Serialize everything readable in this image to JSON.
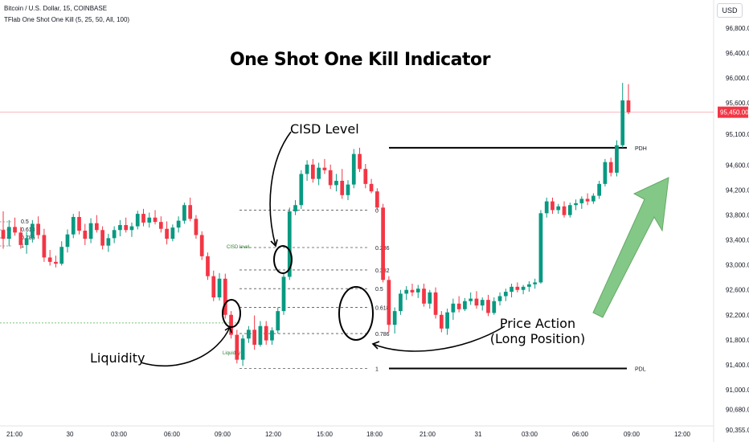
{
  "header": {
    "symbol_line": "Bitcoin / U.S. Dollar, 15, COINBASE",
    "indicator_line": "TFlab One Shot One Kill (5, 25, 50, All, 100)",
    "currency": "USD"
  },
  "annotations": {
    "title": "One Shot One Kill Indicator",
    "cisd_level": "CISD Level",
    "liquidity": "Liquidity",
    "price_action_1": "Price Action",
    "price_action_2": "(Long Position)",
    "cisd_small": "CISD level",
    "liquidity_small": "Liquidity",
    "pdh": "PDH",
    "pdl": "PDL"
  },
  "colors": {
    "bull": "#089981",
    "bear": "#f23645",
    "arrow": "#6fbf73",
    "current_price_bg": "#f23645"
  },
  "chart_data": {
    "type": "candlestick",
    "y_axis": {
      "range": [
        90355,
        97400
      ],
      "tick_labels": [
        "96,800.00",
        "96,400.00",
        "96,000.00",
        "95,600.00",
        "95,100.00",
        "94,600.00",
        "94,200.00",
        "93,800.00",
        "93,400.00",
        "93,000.00",
        "92,600.00",
        "92,200.00",
        "91,800.00",
        "91,400.00",
        "91,000.00",
        "90,680.00",
        "90,355.00"
      ],
      "tick_values": [
        96800,
        96400,
        96000,
        95600,
        95100,
        94600,
        94200,
        93800,
        93400,
        93000,
        92600,
        92200,
        91800,
        91400,
        91000,
        90680,
        90355
      ],
      "current_price_label": "95,450.00",
      "current_price": 95450
    },
    "x_axis": {
      "tick_labels": [
        "21:00",
        "30",
        "03:00",
        "06:00",
        "09:00",
        "12:00",
        "15:00",
        "18:00",
        "21:00",
        "31",
        "03:00",
        "06:00",
        "09:00",
        "12:00"
      ]
    },
    "fib_levels": [
      {
        "label": "0",
        "value": 93880
      },
      {
        "label": "0.236",
        "value": 93280
      },
      {
        "label": "0.382",
        "value": 92920
      },
      {
        "label": "0.5",
        "value": 92620
      },
      {
        "label": "0.618",
        "value": 92320
      },
      {
        "label": "0.786",
        "value": 91900
      },
      {
        "label": "1",
        "value": 91340
      }
    ],
    "left_fib_labels": [
      "0.5",
      "0.618",
      "0.786",
      "1"
    ],
    "pdh_value": 94880,
    "pdl_value": 91340,
    "liquidity_value": 92070,
    "candles": [
      [
        93560,
        93860,
        93260,
        93420
      ],
      [
        93420,
        93720,
        93300,
        93610
      ],
      [
        93610,
        93760,
        93470,
        93520
      ],
      [
        93520,
        93610,
        93260,
        93320
      ],
      [
        93320,
        93530,
        93180,
        93430
      ],
      [
        93430,
        93720,
        93360,
        93660
      ],
      [
        93660,
        93780,
        93420,
        93480
      ],
      [
        93480,
        93580,
        93050,
        93120
      ],
      [
        93120,
        93240,
        92990,
        93050
      ],
      [
        93050,
        93150,
        92960,
        93020
      ],
      [
        93020,
        93380,
        92990,
        93290
      ],
      [
        93290,
        93570,
        93200,
        93490
      ],
      [
        93490,
        93820,
        93430,
        93770
      ],
      [
        93770,
        93860,
        93490,
        93550
      ],
      [
        93550,
        93660,
        93320,
        93420
      ],
      [
        93420,
        93750,
        93350,
        93670
      ],
      [
        93670,
        93800,
        93520,
        93560
      ],
      [
        93560,
        93620,
        93250,
        93310
      ],
      [
        93310,
        93500,
        93210,
        93430
      ],
      [
        93430,
        93620,
        93350,
        93560
      ],
      [
        93560,
        93720,
        93460,
        93640
      ],
      [
        93640,
        93760,
        93520,
        93560
      ],
      [
        93560,
        93680,
        93450,
        93620
      ],
      [
        93620,
        93870,
        93570,
        93820
      ],
      [
        93820,
        93900,
        93620,
        93680
      ],
      [
        93680,
        93840,
        93600,
        93760
      ],
      [
        93760,
        93880,
        93650,
        93690
      ],
      [
        93690,
        93780,
        93520,
        93580
      ],
      [
        93580,
        93700,
        93330,
        93420
      ],
      [
        93420,
        93650,
        93380,
        93600
      ],
      [
        93600,
        93780,
        93520,
        93710
      ],
      [
        93710,
        94000,
        93660,
        93960
      ],
      [
        93960,
        94080,
        93700,
        93740
      ],
      [
        93740,
        93800,
        93420,
        93480
      ],
      [
        93480,
        93540,
        93080,
        93140
      ],
      [
        93140,
        93200,
        92760,
        92820
      ],
      [
        92820,
        92910,
        92420,
        92480
      ],
      [
        92480,
        92870,
        92430,
        92780
      ],
      [
        92780,
        92860,
        92140,
        92200
      ],
      [
        92200,
        92260,
        91820,
        91880
      ],
      [
        91880,
        91960,
        91420,
        91480
      ],
      [
        91480,
        91880,
        91380,
        91820
      ],
      [
        91820,
        92020,
        91750,
        91960
      ],
      [
        91960,
        92190,
        91640,
        91720
      ],
      [
        91720,
        92100,
        91690,
        92020
      ],
      [
        92020,
        92100,
        91720,
        91790
      ],
      [
        91790,
        92000,
        91720,
        91950
      ],
      [
        91950,
        92320,
        91900,
        92260
      ],
      [
        92260,
        92860,
        92200,
        92810
      ],
      [
        92810,
        93920,
        92760,
        93860
      ],
      [
        93860,
        94040,
        93800,
        93960
      ],
      [
        93960,
        94520,
        93900,
        94460
      ],
      [
        94460,
        94680,
        94350,
        94610
      ],
      [
        94610,
        94700,
        94320,
        94380
      ],
      [
        94380,
        94640,
        94280,
        94560
      ],
      [
        94560,
        94700,
        94460,
        94520
      ],
      [
        94520,
        94610,
        94220,
        94280
      ],
      [
        94280,
        94460,
        94180,
        94350
      ],
      [
        94350,
        94540,
        94060,
        94120
      ],
      [
        94120,
        94360,
        94040,
        94290
      ],
      [
        94290,
        94860,
        94230,
        94780
      ],
      [
        94780,
        94880,
        94490,
        94540
      ],
      [
        94540,
        94620,
        94230,
        94300
      ],
      [
        94300,
        94380,
        94150,
        94180
      ],
      [
        94180,
        94230,
        93880,
        93920
      ],
      [
        93920,
        93980,
        92720,
        92760
      ],
      [
        92760,
        92820,
        91920,
        92040
      ],
      [
        92040,
        92320,
        91900,
        92260
      ],
      [
        92260,
        92600,
        92200,
        92540
      ],
      [
        92540,
        92660,
        92440,
        92600
      ],
      [
        92600,
        92700,
        92500,
        92560
      ],
      [
        92560,
        92680,
        92470,
        92620
      ],
      [
        92620,
        92700,
        92330,
        92380
      ],
      [
        92380,
        92600,
        92300,
        92560
      ],
      [
        92560,
        92640,
        92140,
        92200
      ],
      [
        92200,
        92260,
        91920,
        91980
      ],
      [
        91980,
        92300,
        91880,
        92240
      ],
      [
        92240,
        92460,
        92120,
        92380
      ],
      [
        92380,
        92500,
        92240,
        92290
      ],
      [
        92290,
        92470,
        92260,
        92420
      ],
      [
        92420,
        92560,
        92360,
        92460
      ],
      [
        92460,
        92580,
        92300,
        92350
      ],
      [
        92350,
        92480,
        92270,
        92440
      ],
      [
        92440,
        92520,
        92180,
        92230
      ],
      [
        92230,
        92480,
        92200,
        92420
      ],
      [
        92420,
        92560,
        92350,
        92500
      ],
      [
        92500,
        92620,
        92420,
        92570
      ],
      [
        92570,
        92700,
        92480,
        92650
      ],
      [
        92650,
        92720,
        92560,
        92600
      ],
      [
        92600,
        92680,
        92530,
        92650
      ],
      [
        92650,
        92740,
        92570,
        92690
      ],
      [
        92690,
        92780,
        92620,
        92720
      ],
      [
        92720,
        93880,
        92700,
        93830
      ],
      [
        93830,
        94080,
        93760,
        94020
      ],
      [
        94020,
        94080,
        93820,
        93880
      ],
      [
        93880,
        93980,
        93820,
        93940
      ],
      [
        93940,
        94020,
        93760,
        93800
      ],
      [
        93800,
        94000,
        93760,
        93960
      ],
      [
        93960,
        94050,
        93880,
        93990
      ],
      [
        93990,
        94100,
        93900,
        94060
      ],
      [
        94060,
        94150,
        93960,
        94020
      ],
      [
        94020,
        94150,
        93980,
        94110
      ],
      [
        94110,
        94350,
        94060,
        94300
      ],
      [
        94300,
        94700,
        94260,
        94650
      ],
      [
        94650,
        94720,
        94420,
        94480
      ],
      [
        94480,
        95000,
        94420,
        94920
      ],
      [
        94920,
        95920,
        94880,
        95640
      ],
      [
        95640,
        95900,
        95420,
        95450
      ]
    ]
  }
}
